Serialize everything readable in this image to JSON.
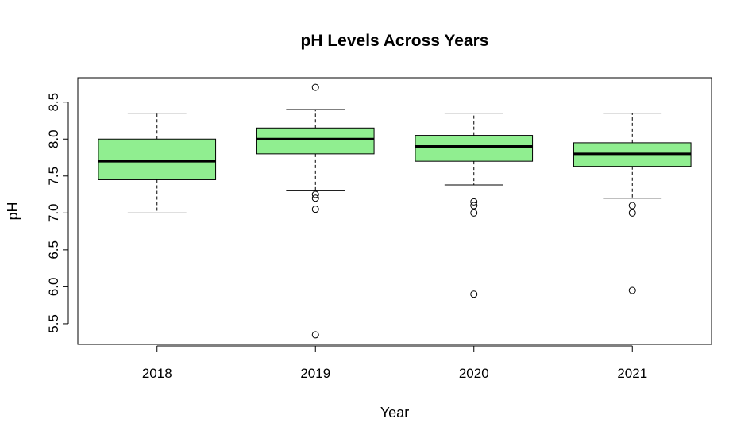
{
  "chart_data": {
    "type": "boxplot",
    "title": "pH Levels Across Years",
    "xlabel": "Year",
    "ylabel": "pH",
    "ylim": [
      5.22,
      8.83
    ],
    "yticks": [
      "5.5",
      "6.0",
      "6.5",
      "7.0",
      "7.5",
      "8.0",
      "8.5"
    ],
    "categories": [
      "2018",
      "2019",
      "2020",
      "2021"
    ],
    "grid": false,
    "legend": "none",
    "box_color": "#90EE90",
    "boxes": [
      {
        "category": "2018",
        "whisker_low": 7.0,
        "q1": 7.45,
        "median": 7.7,
        "q3": 8.0,
        "whisker_high": 8.35,
        "outliers": []
      },
      {
        "category": "2019",
        "whisker_low": 7.3,
        "q1": 7.8,
        "median": 8.0,
        "q3": 8.15,
        "whisker_high": 8.4,
        "outliers": [
          8.7,
          7.25,
          7.2,
          7.05,
          5.35
        ]
      },
      {
        "category": "2020",
        "whisker_low": 7.38,
        "q1": 7.7,
        "median": 7.9,
        "q3": 8.05,
        "whisker_high": 8.35,
        "outliers": [
          7.15,
          7.1,
          7.0,
          5.9
        ]
      },
      {
        "category": "2021",
        "whisker_low": 7.2,
        "q1": 7.63,
        "median": 7.8,
        "q3": 7.95,
        "whisker_high": 8.35,
        "outliers": [
          7.1,
          7.0,
          5.95
        ]
      }
    ]
  }
}
